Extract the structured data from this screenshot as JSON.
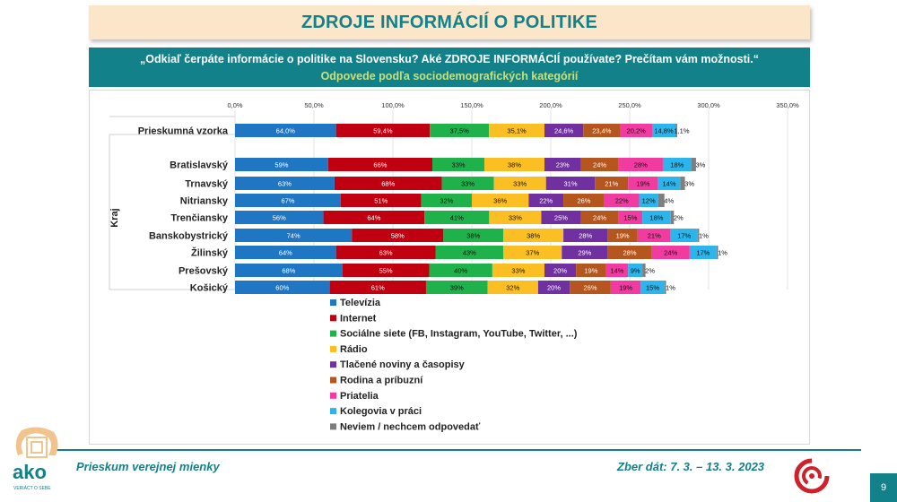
{
  "header": {
    "title": "ZDROJE INFORMÁCIÍ O POLITIKE",
    "question": "„Odkiaľ čerpáte informácie o politike na Slovensku? Aké ZDROJE INFORMÁCIÍ používate? Prečítam vám možnosti.“",
    "subtitle": "Odpovede podľa sociodemografických kategórií"
  },
  "footer": {
    "survey": "Prieskum verejnej mienky",
    "dates": "Zber dát: 7. 3. – 13. 3. 2023",
    "page": "9",
    "logo_text": "ako",
    "logo_tagline": "VERIÁCT O SEBE"
  },
  "chart_data": {
    "type": "bar",
    "orientation": "horizontal",
    "stacked": true,
    "xlim": [
      0,
      350
    ],
    "x_ticks": [
      "0,0%",
      "50,0%",
      "100,0%",
      "150,0%",
      "200,0%",
      "250,0%",
      "300,0%",
      "350,0%"
    ],
    "y_group_label": "Kraj",
    "legend_placement": "bottom-left",
    "categories": [
      "Prieskumná vzorka",
      "Bratislavský",
      "Trnavský",
      "Nitriansky",
      "Trenčiansky",
      "Banskobystrický",
      "Žilinský",
      "Prešovský",
      "Košický"
    ],
    "series": [
      {
        "name": "Televízia",
        "color": "#1f77c4",
        "values": [
          64.0,
          59,
          63,
          67,
          56,
          74,
          64,
          68,
          60
        ],
        "labels": [
          "64,0%",
          "59%",
          "63%",
          "67%",
          "56%",
          "74%",
          "64%",
          "68%",
          "60%"
        ]
      },
      {
        "name": "Internet",
        "color": "#c00010",
        "values": [
          59.4,
          66,
          68,
          51,
          64,
          58,
          63,
          55,
          61
        ],
        "labels": [
          "59,4%",
          "66%",
          "68%",
          "51%",
          "64%",
          "58%",
          "63%",
          "55%",
          "61%"
        ]
      },
      {
        "name": "Sociálne siete (FB, Instagram, YouTube, Twitter, ...)",
        "color": "#1fb24a",
        "values": [
          37.5,
          33,
          33,
          32,
          41,
          38,
          43,
          40,
          39
        ],
        "labels": [
          "37,5%",
          "33%",
          "33%",
          "32%",
          "41%",
          "38%",
          "43%",
          "40%",
          "39%"
        ]
      },
      {
        "name": "Rádio",
        "color": "#fbbf24",
        "values": [
          35.1,
          38,
          33,
          36,
          33,
          38,
          37,
          33,
          32
        ],
        "labels": [
          "35,1%",
          "38%",
          "33%",
          "36%",
          "33%",
          "38%",
          "37%",
          "33%",
          "32%"
        ]
      },
      {
        "name": "Tlačené noviny a časopisy",
        "color": "#7030a0",
        "values": [
          24.6,
          23,
          31,
          22,
          25,
          28,
          29,
          20,
          20
        ],
        "labels": [
          "24,6%",
          "23%",
          "31%",
          "22%",
          "25%",
          "28%",
          "29%",
          "20%",
          "20%"
        ]
      },
      {
        "name": "Rodina a príbuzní",
        "color": "#b5561e",
        "values": [
          23.4,
          24,
          21,
          26,
          24,
          19,
          28,
          19,
          26
        ],
        "labels": [
          "23,4%",
          "24%",
          "21%",
          "26%",
          "24%",
          "19%",
          "28%",
          "19%",
          "26%"
        ]
      },
      {
        "name": "Priatelia",
        "color": "#f23ba0",
        "values": [
          20.2,
          28,
          19,
          22,
          15,
          21,
          24,
          14,
          19
        ],
        "labels": [
          "20,2%",
          "28%",
          "19%",
          "22%",
          "15%",
          "21%",
          "24%",
          "14%",
          "19%"
        ]
      },
      {
        "name": "Kolegovia v práci",
        "color": "#2bb5ec",
        "values": [
          14.8,
          18,
          14,
          12,
          18,
          17,
          17,
          9,
          15
        ],
        "labels": [
          "14,8%",
          "18%",
          "14%",
          "12%",
          "18%",
          "17%",
          "17%",
          "9%",
          "15%"
        ]
      },
      {
        "name": "Neviem / nechcem odpovedať",
        "color": "#7f7f7f",
        "values": [
          1.1,
          3,
          3,
          4,
          2,
          1,
          1,
          2,
          1
        ],
        "labels": [
          "1,1%",
          "3%",
          "3%",
          "4%",
          "2%",
          "1%",
          "1%",
          "2%",
          "1%"
        ]
      }
    ]
  }
}
